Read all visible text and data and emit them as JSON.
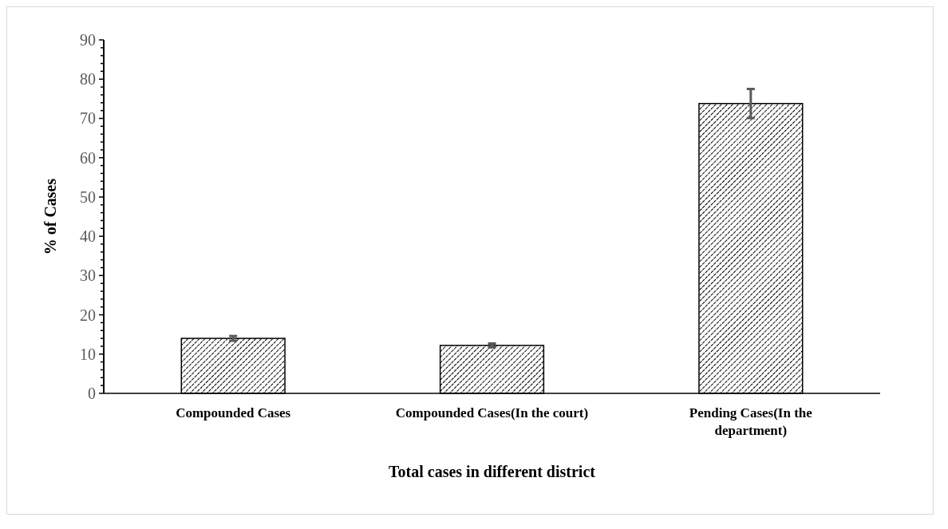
{
  "chart_data": {
    "type": "bar",
    "xlabel": "Total cases in different district",
    "ylabel": "% of Cases",
    "categories": [
      "Compounded Cases",
      "Compounded Cases(In the court)",
      "Pending Cases(In the department)"
    ],
    "series": [
      {
        "color": "#000000",
        "values": [
          14.0,
          12.2,
          73.8
        ],
        "errors": [
          0.6,
          0.5,
          3.7
        ]
      }
    ],
    "ylim": [
      0,
      90
    ],
    "yticks": [
      0,
      {
        "value": 2,
        "label": null
      },
      {
        "value": 4,
        "label": null
      },
      {
        "value": 6,
        "label": null
      },
      {
        "value": 8,
        "label": null
      },
      10,
      {
        "value": 12,
        "label": null
      },
      {
        "value": 14,
        "label": null
      },
      {
        "value": 16,
        "label": null
      },
      {
        "value": 18,
        "label": null
      },
      20,
      {
        "value": 22,
        "label": null
      },
      {
        "value": 24,
        "label": null
      },
      {
        "value": 26,
        "label": null
      },
      {
        "value": 28,
        "label": null
      },
      30,
      {
        "value": 32,
        "label": null
      },
      {
        "value": 34,
        "label": null
      },
      {
        "value": 36,
        "label": null
      },
      {
        "value": 38,
        "label": null
      },
      40,
      {
        "value": 42,
        "label": null
      },
      {
        "value": 44,
        "label": null
      },
      {
        "value": 46,
        "label": null
      },
      {
        "value": 48,
        "label": null
      },
      50,
      {
        "value": 52,
        "label": null
      },
      {
        "value": 54,
        "label": null
      },
      {
        "value": 56,
        "label": null
      },
      {
        "value": 58,
        "label": null
      },
      60,
      {
        "value": 62,
        "label": null
      },
      {
        "value": 64,
        "label": null
      },
      {
        "value": 66,
        "label": null
      },
      {
        "value": 68,
        "label": null
      },
      70,
      {
        "value": 72,
        "label": null
      },
      {
        "value": 74,
        "label": null
      },
      {
        "value": 76,
        "label": null
      },
      {
        "value": 78,
        "label": null
      },
      80,
      {
        "value": 82,
        "label": null
      },
      {
        "value": 84,
        "label": null
      },
      {
        "value": 86,
        "label": null
      },
      {
        "value": 88,
        "label": null
      },
      90
    ],
    "grid": false
  }
}
